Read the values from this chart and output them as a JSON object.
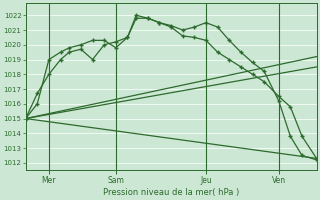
{
  "background_color": "#cce8d4",
  "grid_color": "#b0d8b8",
  "line_color": "#2d6a2d",
  "title": "Pression niveau de la mer( hPa )",
  "ylim": [
    1011.5,
    1022.8
  ],
  "yticks": [
    1012,
    1013,
    1014,
    1015,
    1016,
    1017,
    1018,
    1019,
    1020,
    1021,
    1022
  ],
  "day_positions": [
    0.08,
    0.31,
    0.62,
    0.87
  ],
  "day_labels": [
    "Mer",
    "Sam",
    "Jeu",
    "Ven"
  ],
  "xlim": [
    0,
    1.0
  ],
  "series1_x": [
    0.0,
    0.04,
    0.08,
    0.12,
    0.15,
    0.19,
    0.23,
    0.27,
    0.31,
    0.35,
    0.38,
    0.42,
    0.46,
    0.5,
    0.54,
    0.58,
    0.62,
    0.66,
    0.7,
    0.74,
    0.78,
    0.82,
    0.87,
    0.91,
    0.95,
    1.0
  ],
  "series1_y": [
    1015.0,
    1016.0,
    1019.0,
    1019.5,
    1019.8,
    1020.0,
    1020.3,
    1020.3,
    1019.8,
    1020.5,
    1022.0,
    1021.8,
    1021.5,
    1021.2,
    1020.6,
    1020.5,
    1020.3,
    1019.5,
    1019.0,
    1018.5,
    1018.0,
    1017.5,
    1016.5,
    1015.8,
    1013.8,
    1012.3
  ],
  "series2_x": [
    0.0,
    0.04,
    0.08,
    0.12,
    0.15,
    0.19,
    0.23,
    0.27,
    0.31,
    0.35,
    0.38,
    0.42,
    0.46,
    0.5,
    0.54,
    0.58,
    0.62,
    0.66,
    0.7,
    0.74,
    0.78,
    0.82,
    0.87,
    0.91,
    0.95,
    1.0
  ],
  "series2_y": [
    1015.0,
    1016.7,
    1018.0,
    1019.0,
    1019.5,
    1019.7,
    1019.0,
    1020.0,
    1020.2,
    1020.5,
    1021.8,
    1021.8,
    1021.5,
    1021.3,
    1021.0,
    1021.2,
    1021.5,
    1021.2,
    1020.3,
    1019.5,
    1018.8,
    1018.2,
    1016.2,
    1013.8,
    1012.5,
    1012.2
  ],
  "series3_x": [
    0.0,
    1.0
  ],
  "series3_y": [
    1015.0,
    1019.2
  ],
  "series4_x": [
    0.0,
    1.0
  ],
  "series4_y": [
    1015.0,
    1018.5
  ],
  "series5_x": [
    0.0,
    1.0
  ],
  "series5_y": [
    1015.0,
    1012.3
  ],
  "vline_x": [
    0.08,
    0.31,
    0.62,
    0.87
  ]
}
